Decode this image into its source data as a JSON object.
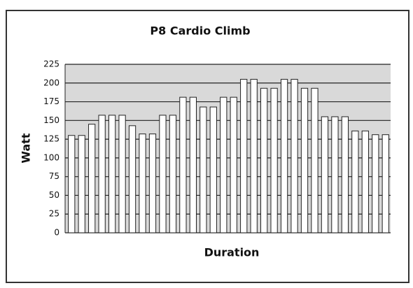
{
  "chart_data": {
    "type": "bar",
    "title": "P8 Cardio Climb",
    "x_label": "Duration",
    "y_label": "Watt",
    "categories": [
      null,
      null,
      null,
      null,
      null,
      null,
      null,
      null,
      null,
      null,
      null,
      null,
      null,
      null,
      null,
      null,
      null,
      null,
      null,
      null,
      null,
      null,
      null,
      null,
      null,
      null,
      null,
      null,
      null,
      null,
      null,
      null
    ],
    "values": [
      130,
      130,
      145,
      157,
      157,
      157,
      143,
      132,
      132,
      157,
      157,
      181,
      181,
      168,
      168,
      181,
      181,
      205,
      205,
      193,
      193,
      205,
      205,
      193,
      193,
      155,
      155,
      155,
      136,
      136,
      131,
      131
    ],
    "color": "#ffffff",
    "ylim": [
      0,
      225
    ],
    "yticks": [
      0,
      25,
      50,
      75,
      100,
      125,
      150,
      175,
      200,
      225
    ],
    "grid": true
  }
}
